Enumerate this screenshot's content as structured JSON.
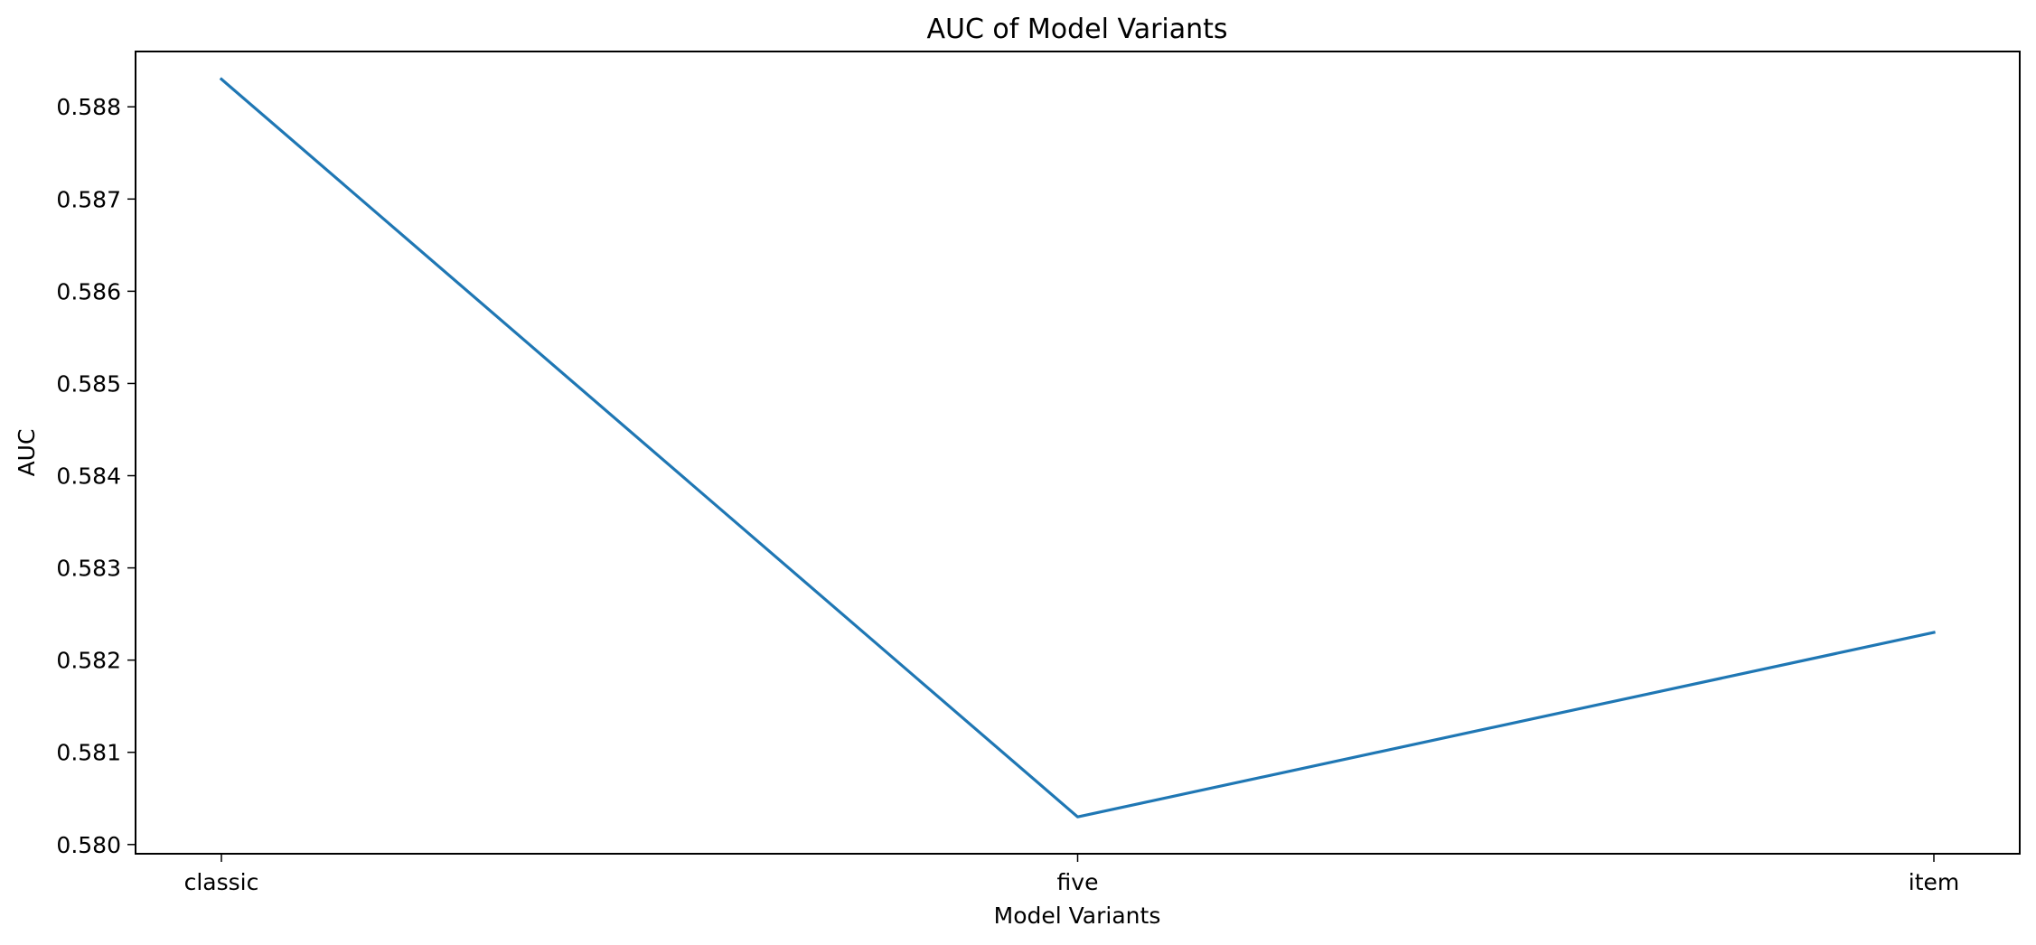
{
  "chart_data": {
    "type": "line",
    "title": "AUC of Model Variants",
    "xlabel": "Model Variants",
    "ylabel": "AUC",
    "categories": [
      "classic",
      "five",
      "item"
    ],
    "series": [
      {
        "name": "AUC",
        "values": [
          0.5883,
          0.5803,
          0.5823
        ],
        "color": "#1f77b4"
      }
    ],
    "ylim": [
      0.5799,
      0.5886
    ],
    "yticks": [
      0.58,
      0.581,
      0.582,
      0.583,
      0.584,
      0.585,
      0.586,
      0.587,
      0.588
    ],
    "ytick_labels": [
      "0.580",
      "0.581",
      "0.582",
      "0.583",
      "0.584",
      "0.585",
      "0.586",
      "0.587",
      "0.588"
    ],
    "grid": false,
    "legend": "none"
  }
}
